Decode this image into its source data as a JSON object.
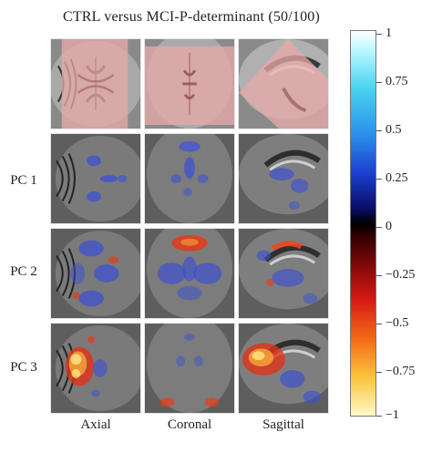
{
  "figure": {
    "title": "CTRL versus MCI-P-determinant (50/100)",
    "rows": [
      "",
      "PC 1",
      "PC 2",
      "PC 3"
    ],
    "columns": [
      "Axial",
      "Coronal",
      "Sagittal"
    ],
    "colorbar": {
      "ticks": [
        "1",
        "0.75",
        "0.5",
        "0.25",
        "0",
        "−0.25",
        "−0.5",
        "−0.75",
        "−1"
      ],
      "max": 1,
      "min": -1,
      "colors": {
        "top": "#ffffff",
        "cyan": "#49d3f0",
        "blue": "#1b3fd0",
        "zero": "#000000",
        "red": "#d81a12",
        "yellow": "#fbc43a",
        "bottom": "#fff9c9"
      }
    }
  }
}
